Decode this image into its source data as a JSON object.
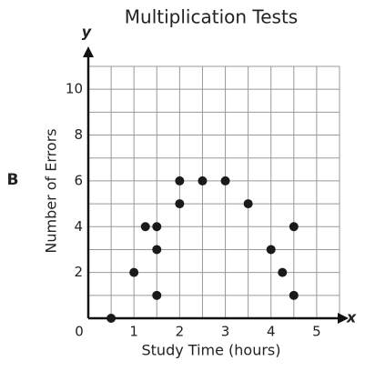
{
  "label": "B",
  "chart_data": {
    "type": "scatter",
    "title": "Multiplication Tests",
    "x_label": "Study Time (hours)",
    "y_label": "Number of Errors",
    "x_axis_letter": "x",
    "y_axis_letter": "y",
    "x": [
      0.5,
      1,
      1.25,
      1.5,
      1.5,
      1.5,
      2,
      2,
      2.5,
      3,
      3.5,
      4,
      4.25,
      4.5,
      4.5
    ],
    "values": [
      0,
      2,
      4,
      4,
      3,
      1,
      6,
      5,
      6,
      6,
      5,
      3,
      2,
      4,
      1
    ],
    "color": "#1a1a1a",
    "xlim": [
      0,
      5.5
    ],
    "ylim": [
      0,
      11
    ],
    "xticks": [
      0,
      1,
      2,
      3,
      4,
      5
    ],
    "yticks": [
      2,
      4,
      6,
      8,
      10
    ],
    "xgrid": [
      0.5,
      1,
      1.5,
      2,
      2.5,
      3,
      3.5,
      4,
      4.5,
      5,
      5.5
    ],
    "ygrid": [
      1,
      2,
      3,
      4,
      5,
      6,
      7,
      8,
      9,
      10,
      11
    ],
    "grid": true
  }
}
